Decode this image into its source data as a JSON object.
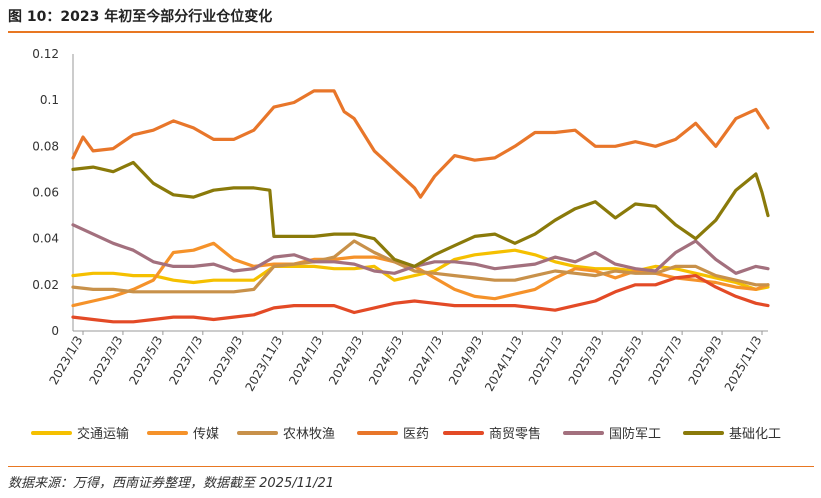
{
  "title": "图 10：2023 年初至今部分行业仓位变化",
  "source": "数据来源：万得，西南证券整理，数据截至 2025/11/21",
  "colors": {
    "交通运输": "#f5c000",
    "传媒": "#f5922a",
    "农林牧渔": "#c8914a",
    "医药": "#e8762a",
    "商贸零售": "#e34a26",
    "国防军工": "#a3707e",
    "基础化工": "#8a7a0a",
    "axis": "#999999",
    "rule": "#e87722"
  },
  "chart_data": {
    "type": "line",
    "title": "2023 年初至今部分行业仓位变化",
    "xlabel": "",
    "ylabel": "",
    "ylim": [
      0,
      0.12
    ],
    "yticks": [
      0,
      0.02,
      0.04,
      0.06,
      0.08,
      0.1,
      0.12
    ],
    "ytick_labels": [
      "0",
      "0.02",
      "0.04",
      "0.06",
      "0.08",
      "0.1",
      "0.12"
    ],
    "x_tick_labels": [
      "2023/1/3",
      "2023/3/3",
      "2023/5/3",
      "2023/7/3",
      "2023/9/3",
      "2023/11/3",
      "2024/1/3",
      "2024/3/3",
      "2024/5/3",
      "2024/7/3",
      "2024/9/3",
      "2024/11/3",
      "2025/1/3",
      "2025/3/3",
      "2025/5/3",
      "2025/7/3",
      "2025/9/3",
      "2025/11/3"
    ],
    "x_range": [
      0,
      34.6
    ],
    "x_unit": "months since 2023/1/3",
    "legend_position": "bottom",
    "series": [
      {
        "name": "交通运输",
        "x": [
          0,
          1,
          2,
          3,
          4,
          5,
          6,
          7,
          8,
          9,
          10,
          11,
          12,
          13,
          14,
          15,
          16,
          17,
          18,
          19,
          20,
          21,
          22,
          23,
          24,
          25,
          26,
          27,
          28,
          29,
          30,
          31,
          32,
          33,
          34,
          34.6
        ],
        "values": [
          0.024,
          0.025,
          0.025,
          0.024,
          0.024,
          0.022,
          0.021,
          0.022,
          0.022,
          0.022,
          0.028,
          0.028,
          0.028,
          0.027,
          0.027,
          0.028,
          0.022,
          0.024,
          0.026,
          0.031,
          0.033,
          0.034,
          0.035,
          0.033,
          0.03,
          0.028,
          0.027,
          0.027,
          0.026,
          0.028,
          0.027,
          0.025,
          0.023,
          0.021,
          0.018,
          0.019
        ]
      },
      {
        "name": "传媒",
        "x": [
          0,
          1,
          2,
          3,
          4,
          5,
          6,
          7,
          8,
          9,
          10,
          11,
          12,
          13,
          14,
          15,
          16,
          17,
          18,
          19,
          20,
          21,
          22,
          23,
          24,
          25,
          26,
          27,
          28,
          29,
          30,
          31,
          32,
          33,
          34,
          34.6
        ],
        "values": [
          0.011,
          0.013,
          0.015,
          0.018,
          0.022,
          0.034,
          0.035,
          0.038,
          0.031,
          0.028,
          0.029,
          0.029,
          0.031,
          0.031,
          0.032,
          0.032,
          0.03,
          0.028,
          0.023,
          0.018,
          0.015,
          0.014,
          0.016,
          0.018,
          0.023,
          0.027,
          0.026,
          0.023,
          0.026,
          0.025,
          0.023,
          0.022,
          0.021,
          0.019,
          0.018,
          0.02
        ]
      },
      {
        "name": "农林牧渔",
        "x": [
          0,
          1,
          2,
          3,
          4,
          5,
          6,
          7,
          8,
          9,
          10,
          11,
          12,
          13,
          14,
          15,
          16,
          17,
          18,
          19,
          20,
          21,
          22,
          23,
          24,
          25,
          26,
          27,
          28,
          29,
          30,
          31,
          32,
          33,
          34,
          34.6
        ],
        "values": [
          0.019,
          0.018,
          0.018,
          0.017,
          0.017,
          0.017,
          0.017,
          0.017,
          0.017,
          0.018,
          0.028,
          0.029,
          0.03,
          0.032,
          0.039,
          0.034,
          0.03,
          0.026,
          0.025,
          0.024,
          0.023,
          0.022,
          0.022,
          0.024,
          0.026,
          0.025,
          0.024,
          0.026,
          0.025,
          0.025,
          0.028,
          0.028,
          0.024,
          0.022,
          0.02,
          0.02
        ]
      },
      {
        "name": "医药",
        "x": [
          0,
          0.5,
          1,
          2,
          3,
          4,
          5,
          6,
          7,
          8,
          9,
          10,
          11,
          12,
          13,
          13.5,
          14,
          15,
          16,
          17,
          17.3,
          18,
          19,
          20,
          21,
          22,
          23,
          24,
          25,
          26,
          27,
          28,
          29,
          30,
          31,
          32,
          33,
          34,
          34.6
        ],
        "values": [
          0.075,
          0.084,
          0.078,
          0.079,
          0.085,
          0.087,
          0.091,
          0.088,
          0.083,
          0.083,
          0.087,
          0.097,
          0.099,
          0.104,
          0.104,
          0.095,
          0.092,
          0.078,
          0.07,
          0.062,
          0.058,
          0.067,
          0.076,
          0.074,
          0.075,
          0.08,
          0.086,
          0.086,
          0.087,
          0.08,
          0.08,
          0.082,
          0.08,
          0.083,
          0.09,
          0.08,
          0.092,
          0.096,
          0.088
        ]
      },
      {
        "name": "商贸零售",
        "x": [
          0,
          1,
          2,
          3,
          4,
          5,
          6,
          7,
          8,
          9,
          10,
          11,
          12,
          13,
          14,
          15,
          16,
          17,
          18,
          19,
          20,
          21,
          22,
          23,
          24,
          25,
          26,
          27,
          28,
          29,
          30,
          31,
          32,
          33,
          34,
          34.6
        ],
        "values": [
          0.006,
          0.005,
          0.004,
          0.004,
          0.005,
          0.006,
          0.006,
          0.005,
          0.006,
          0.007,
          0.01,
          0.011,
          0.011,
          0.011,
          0.008,
          0.01,
          0.012,
          0.013,
          0.012,
          0.011,
          0.011,
          0.011,
          0.011,
          0.01,
          0.009,
          0.011,
          0.013,
          0.017,
          0.02,
          0.02,
          0.023,
          0.024,
          0.019,
          0.015,
          0.012,
          0.011
        ]
      },
      {
        "name": "国防军工",
        "x": [
          0,
          1,
          2,
          3,
          4,
          5,
          6,
          7,
          8,
          9,
          10,
          11,
          12,
          13,
          14,
          15,
          16,
          17,
          18,
          19,
          20,
          21,
          22,
          23,
          24,
          25,
          26,
          27,
          28,
          29,
          30,
          31,
          32,
          33,
          34,
          34.6
        ],
        "values": [
          0.046,
          0.042,
          0.038,
          0.035,
          0.03,
          0.028,
          0.028,
          0.029,
          0.026,
          0.027,
          0.032,
          0.033,
          0.03,
          0.03,
          0.029,
          0.026,
          0.025,
          0.028,
          0.03,
          0.03,
          0.029,
          0.027,
          0.028,
          0.029,
          0.032,
          0.03,
          0.034,
          0.029,
          0.027,
          0.026,
          0.034,
          0.039,
          0.031,
          0.025,
          0.028,
          0.027
        ]
      },
      {
        "name": "基础化工",
        "x": [
          0,
          1,
          2,
          3,
          4,
          5,
          6,
          7,
          8,
          9,
          9.8,
          10,
          11,
          12,
          13,
          14,
          15,
          16,
          17,
          18,
          19,
          20,
          21,
          22,
          23,
          24,
          25,
          26,
          27,
          28,
          29,
          30,
          31,
          32,
          33,
          34,
          34.3,
          34.6
        ],
        "values": [
          0.07,
          0.071,
          0.069,
          0.073,
          0.064,
          0.059,
          0.058,
          0.061,
          0.062,
          0.062,
          0.061,
          0.041,
          0.041,
          0.041,
          0.042,
          0.042,
          0.04,
          0.031,
          0.028,
          0.033,
          0.037,
          0.041,
          0.042,
          0.038,
          0.042,
          0.048,
          0.053,
          0.056,
          0.049,
          0.055,
          0.054,
          0.046,
          0.04,
          0.048,
          0.061,
          0.068,
          0.06,
          0.05
        ]
      }
    ]
  }
}
